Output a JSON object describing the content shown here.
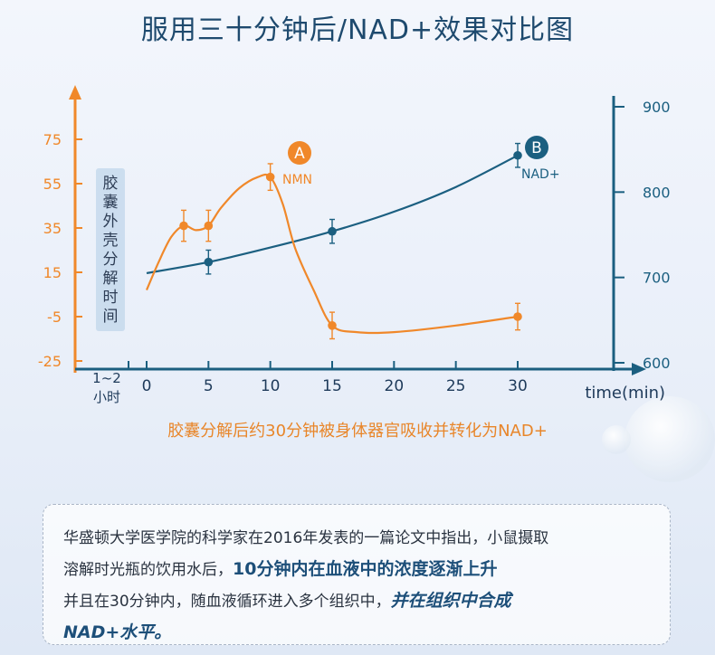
{
  "title": "服用三十分钟后/NAD+效果对比图",
  "caption": "胶囊分解后约30分钟被身体器官吸收并转化为NAD+",
  "note": {
    "line1": "华盛顿大学医学院的科学家在2016年发表的一篇论文中指出，小鼠摄取",
    "line2_plain": "溶解时光瓶的饮用水后，",
    "line2_bold": "10分钟内在血液中的浓度逐渐上升",
    "line3_plain": "并且在30分钟内，随血液循环进入多个组织中，",
    "line3_italic": "并在组织中合成",
    "line4_italic": "NAD+水平。"
  },
  "chart_data": {
    "type": "line",
    "xlabel": "time(min)",
    "x_ticks": [
      0,
      5,
      10,
      15,
      20,
      25,
      30
    ],
    "x_pre_label": [
      "1~2",
      "小时"
    ],
    "y_left_ticks": [
      75,
      55,
      35,
      15,
      -5,
      -25
    ],
    "y_left_ticks_text": [
      "75",
      "55",
      "35",
      "15",
      "-5",
      "-25"
    ],
    "ylim_left": [
      -25,
      95
    ],
    "y_right_ticks": [
      900,
      800,
      700,
      600
    ],
    "ylim_right": [
      600,
      910
    ],
    "band_label": "胶囊外壳分解时间",
    "series": [
      {
        "name": "NMN",
        "marker": "A",
        "axis": "left",
        "color": "#f0882a",
        "points": [
          [
            3,
            36
          ],
          [
            5,
            36
          ],
          [
            10,
            58
          ],
          [
            15,
            -9
          ],
          [
            30,
            -5
          ]
        ],
        "curve": [
          [
            0,
            7
          ],
          [
            1,
            20
          ],
          [
            2,
            31
          ],
          [
            3,
            36
          ],
          [
            4,
            34
          ],
          [
            5,
            36
          ],
          [
            6,
            44
          ],
          [
            7.5,
            53
          ],
          [
            9,
            58
          ],
          [
            10,
            58
          ],
          [
            11,
            46
          ],
          [
            12,
            26
          ],
          [
            13.5,
            7
          ],
          [
            15,
            -9
          ],
          [
            17,
            -12
          ],
          [
            20,
            -12
          ],
          [
            25,
            -9
          ],
          [
            30,
            -5
          ]
        ],
        "errors": [
          7,
          7,
          6,
          6,
          6
        ]
      },
      {
        "name": "NAD+",
        "marker": "B",
        "axis": "right",
        "color": "#1b5f80",
        "points": [
          [
            5,
            718
          ],
          [
            15,
            754
          ],
          [
            30,
            843
          ]
        ],
        "curve": [
          [
            0,
            705
          ],
          [
            5,
            718
          ],
          [
            10,
            735
          ],
          [
            15,
            754
          ],
          [
            20,
            777
          ],
          [
            25,
            806
          ],
          [
            30,
            843
          ]
        ],
        "errors": [
          14,
          14,
          14
        ]
      }
    ]
  },
  "colors": {
    "left_axis": "#f0882a",
    "right_axis": "#1b5f80",
    "title": "#1e4a6e",
    "band": "#c5d9ec"
  }
}
